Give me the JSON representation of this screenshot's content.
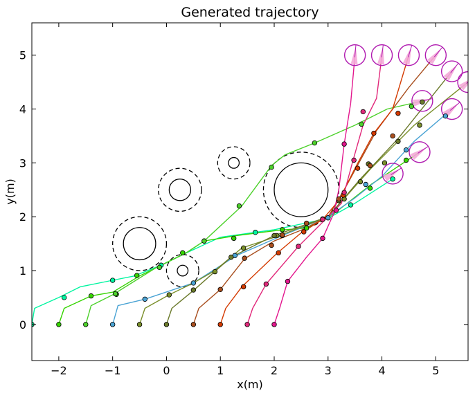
{
  "chart_data": {
    "type": "scatter",
    "title": "Generated trajectory",
    "xlabel": "x(m)",
    "ylabel": "y(m)",
    "xlim": [
      -2.5,
      5.6
    ],
    "ylim": [
      -0.67,
      5.6
    ],
    "x_ticks": [
      -2,
      -1,
      0,
      1,
      2,
      3,
      4,
      5
    ],
    "x_tick_labels": [
      "−2",
      "−1",
      "0",
      "1",
      "2",
      "3",
      "4",
      "5"
    ],
    "y_ticks": [
      0,
      1,
      2,
      3,
      4,
      5
    ],
    "y_tick_labels": [
      "0",
      "1",
      "2",
      "3",
      "4",
      "5"
    ],
    "grid": false,
    "legend": "none",
    "obstacles": [
      {
        "cx": 2.5,
        "cy": 2.5,
        "r": 0.5,
        "safety_r": 0.7
      },
      {
        "cx": -0.5,
        "cy": 1.5,
        "r": 0.3,
        "safety_r": 0.5
      },
      {
        "cx": 0.25,
        "cy": 2.5,
        "r": 0.2,
        "safety_r": 0.4
      },
      {
        "cx": 1.25,
        "cy": 3.0,
        "r": 0.1,
        "safety_r": 0.3
      },
      {
        "cx": 0.3,
        "cy": 1.0,
        "r": 0.1,
        "safety_r": 0.3
      }
    ],
    "series": [
      {
        "color": "#00f5a0",
        "start": [
          -2.5,
          0
        ],
        "goal": [
          4.2,
          2.8
        ],
        "path": [
          [
            -2.5,
            0
          ],
          [
            -2.45,
            0.3
          ],
          [
            -2.0,
            0.5
          ],
          [
            -1.6,
            0.7
          ],
          [
            -1.0,
            0.82
          ],
          [
            -0.6,
            0.9
          ],
          [
            -0.1,
            1.1
          ],
          [
            0.35,
            1.32
          ],
          [
            1.0,
            1.62
          ],
          [
            2.0,
            1.76
          ],
          [
            3.0,
            1.97
          ],
          [
            3.5,
            2.25
          ],
          [
            4.2,
            2.7
          ]
        ],
        "markers": [
          [
            -2.5,
            0
          ],
          [
            -1.9,
            0.5
          ],
          [
            -1.0,
            0.82
          ],
          [
            -0.1,
            1.1
          ],
          [
            1.65,
            1.71
          ],
          [
            2.9,
            1.96
          ],
          [
            3.42,
            2.22
          ],
          [
            4.2,
            2.7
          ]
        ]
      },
      {
        "color": "#35d400",
        "start": [
          -2.0,
          0
        ],
        "goal": [
          4.7,
          3.2
        ],
        "path": [
          [
            -2.0,
            0
          ],
          [
            -1.9,
            0.3
          ],
          [
            -1.4,
            0.53
          ],
          [
            -1.0,
            0.6
          ],
          [
            -0.5,
            0.9
          ],
          [
            0.35,
            1.32
          ],
          [
            0.7,
            1.55
          ],
          [
            1.3,
            1.65
          ],
          [
            2.1,
            1.75
          ],
          [
            2.6,
            1.79
          ],
          [
            3.1,
            2.05
          ],
          [
            3.8,
            2.6
          ],
          [
            4.7,
            3.2
          ]
        ],
        "markers": [
          [
            -2.0,
            0
          ],
          [
            -1.4,
            0.53
          ],
          [
            -0.93,
            0.56
          ],
          [
            -0.55,
            0.91
          ],
          [
            0.3,
            1.33
          ],
          [
            0.7,
            1.55
          ],
          [
            1.25,
            1.6
          ],
          [
            2.15,
            1.76
          ],
          [
            2.6,
            1.79
          ],
          [
            3.78,
            2.53
          ],
          [
            4.45,
            3.05
          ]
        ]
      },
      {
        "color": "#4cd12a",
        "start": [
          -1.5,
          0
        ],
        "goal": [
          4.75,
          4.15
        ],
        "path": [
          [
            -1.5,
            0
          ],
          [
            -1.4,
            0.35
          ],
          [
            -1.0,
            0.55
          ],
          [
            -0.2,
            1.05
          ],
          [
            0.4,
            1.35
          ],
          [
            0.7,
            1.55
          ],
          [
            1.4,
            2.2
          ],
          [
            1.95,
            2.95
          ],
          [
            2.2,
            3.15
          ],
          [
            2.75,
            3.37
          ],
          [
            3.5,
            3.7
          ],
          [
            4.1,
            4.0
          ],
          [
            4.75,
            4.15
          ]
        ],
        "markers": [
          [
            -1.5,
            0
          ],
          [
            -0.95,
            0.57
          ],
          [
            -0.13,
            1.06
          ],
          [
            0.7,
            1.55
          ],
          [
            1.35,
            2.2
          ],
          [
            1.95,
            2.92
          ],
          [
            2.75,
            3.37
          ],
          [
            3.62,
            3.72
          ],
          [
            4.55,
            4.05
          ]
        ]
      },
      {
        "color": "#4aa3d4",
        "start": [
          -1.0,
          0
        ],
        "goal": [
          5.3,
          4.0
        ],
        "path": [
          [
            -1.0,
            0
          ],
          [
            -0.9,
            0.35
          ],
          [
            -0.4,
            0.47
          ],
          [
            0.5,
            0.77
          ],
          [
            1.3,
            1.28
          ],
          [
            2.15,
            1.65
          ],
          [
            3.0,
            2.0
          ],
          [
            3.5,
            2.35
          ],
          [
            4.0,
            2.75
          ],
          [
            4.6,
            3.4
          ],
          [
            5.3,
            4.0
          ]
        ],
        "markers": [
          [
            -1.0,
            0
          ],
          [
            -0.4,
            0.47
          ],
          [
            0.5,
            0.77
          ],
          [
            1.27,
            1.28
          ],
          [
            2.15,
            1.65
          ],
          [
            3.0,
            1.98
          ],
          [
            3.7,
            2.6
          ],
          [
            4.45,
            3.24
          ],
          [
            5.18,
            3.87
          ]
        ]
      },
      {
        "color": "#7a8f2a",
        "start": [
          -0.5,
          0
        ],
        "goal": [
          5.6,
          4.5
        ],
        "path": [
          [
            -0.5,
            0
          ],
          [
            -0.4,
            0.3
          ],
          [
            0.05,
            0.55
          ],
          [
            0.5,
            0.77
          ],
          [
            0.9,
            1.0
          ],
          [
            1.4,
            1.42
          ],
          [
            2.1,
            1.65
          ],
          [
            3.0,
            2.0
          ],
          [
            3.8,
            2.9
          ],
          [
            4.6,
            3.7
          ],
          [
            5.6,
            4.5
          ]
        ],
        "markers": [
          [
            -0.5,
            0
          ],
          [
            0.05,
            0.55
          ],
          [
            0.9,
            0.98
          ],
          [
            1.43,
            1.42
          ],
          [
            2.05,
            1.65
          ],
          [
            3.3,
            2.33
          ],
          [
            3.6,
            2.65
          ],
          [
            4.05,
            3.0
          ],
          [
            4.7,
            3.7
          ]
        ]
      },
      {
        "color": "#6b7a2b",
        "start": [
          0.0,
          0
        ],
        "goal": [
          5.3,
          4.7
        ],
        "path": [
          [
            0.0,
            0
          ],
          [
            0.1,
            0.3
          ],
          [
            0.5,
            0.63
          ],
          [
            1.2,
            1.25
          ],
          [
            2.0,
            1.65
          ],
          [
            3.0,
            2.0
          ],
          [
            3.6,
            2.7
          ],
          [
            4.3,
            3.45
          ],
          [
            5.3,
            4.7
          ]
        ],
        "markers": [
          [
            0.0,
            0
          ],
          [
            0.5,
            0.64
          ],
          [
            1.2,
            1.25
          ],
          [
            2.0,
            1.65
          ],
          [
            3.2,
            2.3
          ],
          [
            3.75,
            2.98
          ],
          [
            4.3,
            3.4
          ],
          [
            4.75,
            4.13
          ]
        ]
      },
      {
        "color": "#a84e1e",
        "start": [
          0.5,
          0
        ],
        "goal": [
          5.0,
          5.0
        ],
        "path": [
          [
            0.5,
            0
          ],
          [
            0.6,
            0.3
          ],
          [
            1.0,
            0.65
          ],
          [
            1.45,
            1.22
          ],
          [
            2.0,
            1.55
          ],
          [
            2.5,
            1.75
          ],
          [
            3.0,
            2.0
          ],
          [
            3.3,
            2.5
          ],
          [
            3.9,
            3.6
          ],
          [
            4.5,
            4.4
          ],
          [
            5.0,
            5.0
          ]
        ],
        "markers": [
          [
            0.5,
            0
          ],
          [
            1.0,
            0.65
          ],
          [
            1.45,
            1.23
          ],
          [
            1.95,
            1.47
          ],
          [
            2.15,
            1.66
          ],
          [
            2.6,
            1.88
          ],
          [
            3.2,
            2.33
          ],
          [
            3.78,
            2.95
          ],
          [
            4.2,
            3.5
          ]
        ]
      },
      {
        "color": "#d43a00",
        "start": [
          1.0,
          0
        ],
        "goal": [
          4.5,
          5.0
        ],
        "path": [
          [
            1.0,
            0
          ],
          [
            1.1,
            0.3
          ],
          [
            1.4,
            0.7
          ],
          [
            2.05,
            1.32
          ],
          [
            2.5,
            1.7
          ],
          [
            2.9,
            1.95
          ],
          [
            3.2,
            2.3
          ],
          [
            3.5,
            2.9
          ],
          [
            3.85,
            3.55
          ],
          [
            4.2,
            4.0
          ],
          [
            4.5,
            5.0
          ]
        ],
        "markers": [
          [
            1.0,
            0
          ],
          [
            1.43,
            0.7
          ],
          [
            2.08,
            1.33
          ],
          [
            2.55,
            1.72
          ],
          [
            3.28,
            2.4
          ],
          [
            3.55,
            2.9
          ],
          [
            3.85,
            3.55
          ],
          [
            4.3,
            3.92
          ]
        ]
      },
      {
        "color": "#e1287a",
        "start": [
          1.5,
          0
        ],
        "goal": [
          4.0,
          5.0
        ],
        "path": [
          [
            1.5,
            0
          ],
          [
            1.6,
            0.3
          ],
          [
            1.85,
            0.75
          ],
          [
            2.45,
            1.45
          ],
          [
            2.95,
            1.95
          ],
          [
            3.25,
            2.25
          ],
          [
            3.45,
            3.0
          ],
          [
            3.65,
            3.7
          ],
          [
            3.9,
            4.2
          ],
          [
            4.0,
            5.0
          ]
        ],
        "markers": [
          [
            1.5,
            0
          ],
          [
            1.85,
            0.75
          ],
          [
            2.45,
            1.45
          ],
          [
            2.9,
            1.95
          ],
          [
            3.3,
            2.45
          ],
          [
            3.48,
            3.05
          ],
          [
            3.65,
            3.95
          ]
        ]
      },
      {
        "color": "#e3168d",
        "start": [
          2.0,
          0
        ],
        "goal": [
          3.5,
          5.0
        ],
        "path": [
          [
            2.0,
            0
          ],
          [
            2.1,
            0.3
          ],
          [
            2.25,
            0.8
          ],
          [
            2.6,
            1.25
          ],
          [
            2.9,
            1.6
          ],
          [
            3.1,
            2.05
          ],
          [
            3.2,
            2.5
          ],
          [
            3.3,
            3.35
          ],
          [
            3.42,
            4.1
          ],
          [
            3.5,
            5.0
          ]
        ],
        "markers": [
          [
            2.0,
            0
          ],
          [
            2.25,
            0.8
          ],
          [
            2.9,
            1.6
          ],
          [
            3.15,
            2.12
          ],
          [
            3.3,
            3.35
          ]
        ]
      }
    ],
    "goals": [
      [
        3.5,
        5.0
      ],
      [
        4.0,
        5.0
      ],
      [
        4.5,
        5.0
      ],
      [
        5.0,
        5.0
      ],
      [
        5.3,
        4.7
      ],
      [
        5.6,
        4.5
      ],
      [
        4.75,
        4.15
      ],
      [
        5.3,
        4.0
      ],
      [
        4.7,
        3.2
      ],
      [
        4.2,
        2.8
      ]
    ],
    "goal_colors": {
      "circle": "#b01ab0",
      "fill": "#f4a8d8"
    }
  }
}
